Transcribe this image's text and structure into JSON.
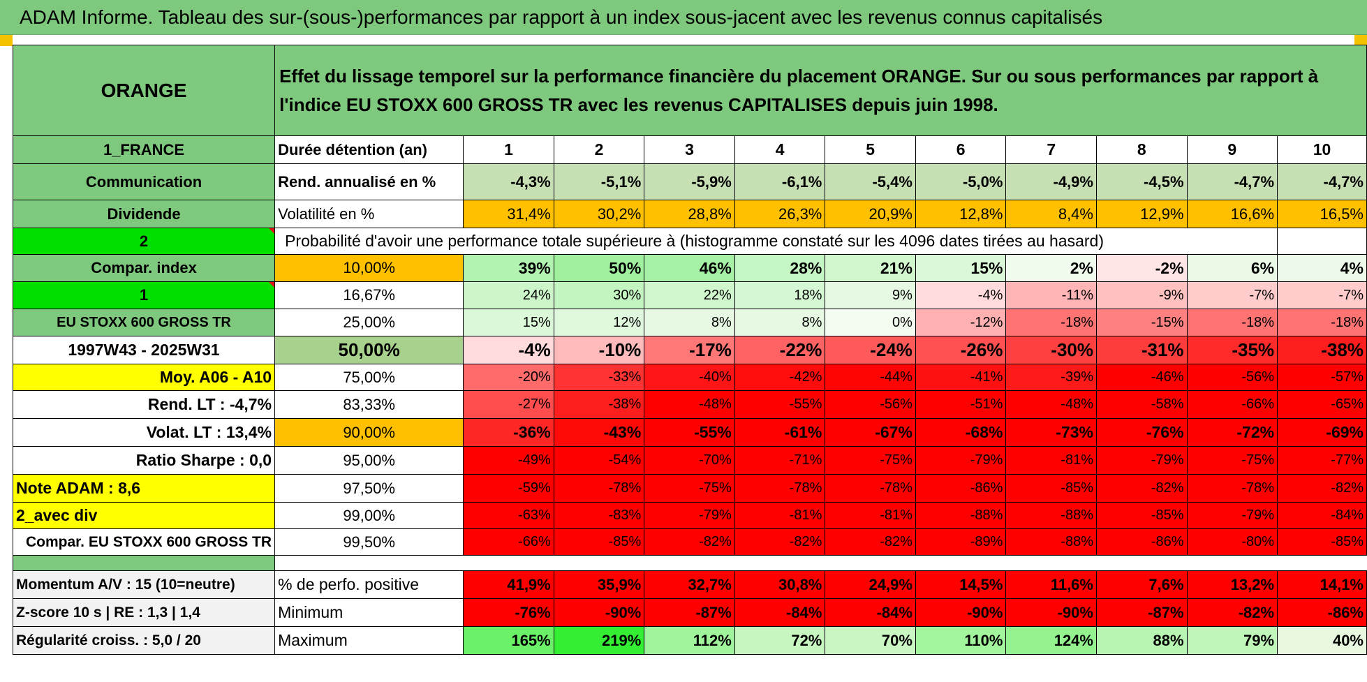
{
  "title": "ADAM Informe. Tableau des sur-(sous-)performances par rapport à un index sous-jacent avec les revenus connus capitalisés",
  "company": "ORANGE",
  "description": "Effet du lissage temporel sur la performance financière du placement ORANGE. Sur ou sous performances par rapport à l'indice EU STOXX 600 GROSS TR avec les revenus CAPITALISES depuis juin 1998.",
  "left": {
    "country": "1_FRANCE",
    "sector": "Communication",
    "dividend": "Dividende",
    "option1": "2",
    "compar_index": "Compar. index",
    "option2": "1",
    "index_name": "EU STOXX 600 GROSS TR",
    "period": "1997W43 - 2025W31",
    "moy": "Moy. A06 - A10",
    "rend_lt": "Rend. LT :    -4,7%",
    "volat_lt": "Volat. LT :    13,4%",
    "sharpe": "Ratio Sharpe :     0,0",
    "note": "Note ADAM : 8,6",
    "avec_div": "2_avec div",
    "compar_name": "Compar. EU STOXX 600 GROSS TR",
    "momentum": "Momentum A/V : 15 (10=neutre)",
    "zscore": "Z-score 10 s | RE : 1,3 | 1,4",
    "regularite": "Régularité croiss. : 5,0 / 20"
  },
  "header_row": {
    "label": "Durée détention (an)",
    "years": [
      "1",
      "2",
      "3",
      "4",
      "5",
      "6",
      "7",
      "8",
      "9",
      "10"
    ]
  },
  "rend_row": {
    "label": "Rend. annualisé en %",
    "values": [
      "-4,3%",
      "-5,1%",
      "-5,9%",
      "-6,1%",
      "-5,4%",
      "-5,0%",
      "-4,9%",
      "-4,5%",
      "-4,7%",
      "-4,7%"
    ]
  },
  "vol_row": {
    "label": "Volatilité en %",
    "values": [
      "31,4%",
      "30,2%",
      "28,8%",
      "26,3%",
      "20,9%",
      "12,8%",
      "8,4%",
      "12,9%",
      "16,6%",
      "16,5%"
    ]
  },
  "proba_label": "Probabilité d'avoir une performance totale supérieure à (histogramme constaté sur les 4096 dates tirées au hasard)",
  "quantile_rows": [
    {
      "q": "10,00%",
      "values": [
        "39%",
        "50%",
        "46%",
        "28%",
        "21%",
        "15%",
        "2%",
        "-2%",
        "6%",
        "4%"
      ]
    },
    {
      "q": "16,67%",
      "values": [
        "24%",
        "30%",
        "22%",
        "18%",
        "9%",
        "-4%",
        "-11%",
        "-9%",
        "-7%",
        "-7%"
      ]
    },
    {
      "q": "25,00%",
      "values": [
        "15%",
        "12%",
        "8%",
        "8%",
        "0%",
        "-12%",
        "-18%",
        "-15%",
        "-18%",
        "-18%"
      ]
    },
    {
      "q": "50,00%",
      "values": [
        "-4%",
        "-10%",
        "-17%",
        "-22%",
        "-24%",
        "-26%",
        "-30%",
        "-31%",
        "-35%",
        "-38%"
      ]
    },
    {
      "q": "75,00%",
      "values": [
        "-20%",
        "-33%",
        "-40%",
        "-42%",
        "-44%",
        "-41%",
        "-39%",
        "-46%",
        "-56%",
        "-57%"
      ]
    },
    {
      "q": "83,33%",
      "values": [
        "-27%",
        "-38%",
        "-48%",
        "-55%",
        "-56%",
        "-51%",
        "-48%",
        "-58%",
        "-66%",
        "-65%"
      ]
    },
    {
      "q": "90,00%",
      "values": [
        "-36%",
        "-43%",
        "-55%",
        "-61%",
        "-67%",
        "-68%",
        "-73%",
        "-76%",
        "-72%",
        "-69%"
      ]
    },
    {
      "q": "95,00%",
      "values": [
        "-49%",
        "-54%",
        "-70%",
        "-71%",
        "-75%",
        "-79%",
        "-81%",
        "-79%",
        "-75%",
        "-77%"
      ]
    },
    {
      "q": "97,50%",
      "values": [
        "-59%",
        "-78%",
        "-75%",
        "-78%",
        "-78%",
        "-86%",
        "-85%",
        "-82%",
        "-78%",
        "-82%"
      ]
    },
    {
      "q": "99,00%",
      "values": [
        "-63%",
        "-83%",
        "-79%",
        "-81%",
        "-81%",
        "-88%",
        "-88%",
        "-85%",
        "-79%",
        "-84%"
      ]
    },
    {
      "q": "99,50%",
      "values": [
        "-66%",
        "-85%",
        "-82%",
        "-82%",
        "-82%",
        "-89%",
        "-88%",
        "-86%",
        "-80%",
        "-85%"
      ]
    }
  ],
  "stats": {
    "pos": {
      "label": "% de perfo. positive",
      "values": [
        "41,9%",
        "35,9%",
        "32,7%",
        "30,8%",
        "24,9%",
        "14,5%",
        "11,6%",
        "7,6%",
        "13,2%",
        "14,1%"
      ]
    },
    "min": {
      "label": "Minimum",
      "values": [
        "-76%",
        "-90%",
        "-87%",
        "-84%",
        "-84%",
        "-90%",
        "-90%",
        "-87%",
        "-82%",
        "-86%"
      ]
    },
    "max": {
      "label": "Maximum",
      "values": [
        "165%",
        "219%",
        "112%",
        "72%",
        "70%",
        "110%",
        "124%",
        "88%",
        "79%",
        "40%"
      ]
    }
  },
  "colors": {
    "header_green": "#7fc97f",
    "bright_green": "#00e000",
    "yellow": "#ffff00",
    "orange": "#ffc000",
    "light_green": "#c6e0b4",
    "red": "#ff0000",
    "label_red": "#e0101c"
  }
}
